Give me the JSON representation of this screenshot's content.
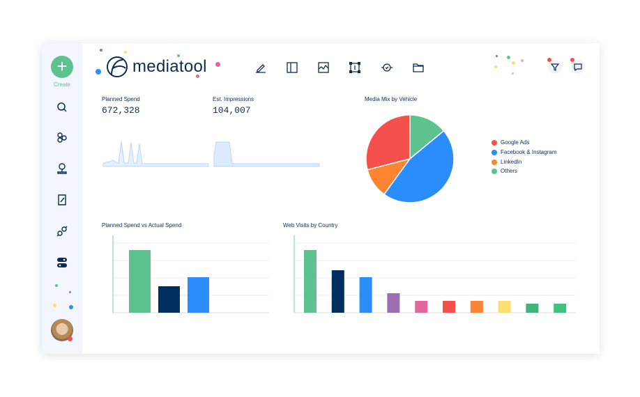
{
  "sidebar": {
    "create_label": "Create",
    "items": [
      {
        "icon": "search-icon"
      },
      {
        "icon": "circles-icon"
      },
      {
        "icon": "location-pin-icon"
      },
      {
        "icon": "script-icon"
      },
      {
        "icon": "plug-icon"
      },
      {
        "icon": "toggle-icon"
      }
    ]
  },
  "header": {
    "logo_text": "mediatool",
    "toolbar": [
      {
        "icon": "pencil-icon"
      },
      {
        "icon": "board-icon"
      },
      {
        "icon": "chart-image-icon"
      },
      {
        "icon": "text-frame-icon"
      },
      {
        "icon": "check-circle-icon"
      },
      {
        "icon": "folder-icon"
      }
    ],
    "right": [
      {
        "icon": "filter-icon"
      },
      {
        "icon": "chat-icon"
      }
    ]
  },
  "kpis": [
    {
      "label": "Planned Spend",
      "value": "672,328"
    },
    {
      "label": "Est. Impressions",
      "value": "104,007"
    }
  ],
  "chart_data": [
    {
      "type": "pie",
      "title": "Media Mix by Vehicle",
      "legend": "right",
      "categories": [
        "Google Ads",
        "Facebook & Instagram",
        "LinkedIn",
        "Others"
      ],
      "values": [
        29,
        46,
        11,
        14
      ],
      "colors": [
        "#f5504b",
        "#2b8cfb",
        "#fd8430",
        "#5cc38e"
      ]
    },
    {
      "type": "bar",
      "title": "Planned Spend vs Actual Spend",
      "ylim": [
        0,
        4
      ],
      "grid": true,
      "values": [
        3.6,
        1.52,
        2.04
      ],
      "colors": [
        "#5cc38e",
        "#002e5e",
        "#2b8cfb"
      ]
    },
    {
      "type": "bar",
      "title": "Web Visits by Country",
      "ylim": [
        0,
        4
      ],
      "grid": true,
      "values": [
        3.6,
        2.44,
        2.04,
        1.12,
        0.68,
        0.68,
        0.68,
        0.68,
        0.52,
        0.52
      ],
      "colors": [
        "#5cc38e",
        "#002e5e",
        "#2b8cfb",
        "#9a70b0",
        "#e5669e",
        "#f5504b",
        "#fd8430",
        "#fbe06e",
        "#42b37a",
        "#42c07e"
      ]
    }
  ]
}
